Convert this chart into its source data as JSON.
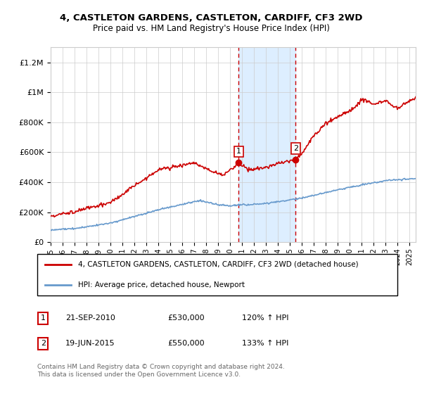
{
  "title1": "4, CASTLETON GARDENS, CASTLETON, CARDIFF, CF3 2WD",
  "title2": "Price paid vs. HM Land Registry's House Price Index (HPI)",
  "ylabel_ticks": [
    "£0",
    "£200K",
    "£400K",
    "£600K",
    "£800K",
    "£1M",
    "£1.2M"
  ],
  "ytick_values": [
    0,
    200000,
    400000,
    600000,
    800000,
    1000000,
    1200000
  ],
  "ylim": [
    0,
    1300000
  ],
  "xlim_start": 1995.0,
  "xlim_end": 2025.5,
  "legend_label_red": "4, CASTLETON GARDENS, CASTLETON, CARDIFF, CF3 2WD (detached house)",
  "legend_label_blue": "HPI: Average price, detached house, Newport",
  "sale1_year": 2010.72,
  "sale1_price": 530000,
  "sale1_label": "1",
  "sale2_year": 2015.47,
  "sale2_price": 550000,
  "sale2_label": "2",
  "copyright_text": "Contains HM Land Registry data © Crown copyright and database right 2024.\nThis data is licensed under the Open Government Licence v3.0.",
  "red_color": "#cc0000",
  "blue_color": "#6699cc",
  "shade_color": "#ddeeff",
  "grid_color": "#cccccc",
  "background_color": "#ffffff",
  "ann1_date": "21-SEP-2010",
  "ann1_price": "£530,000",
  "ann1_hpi": "120% ↑ HPI",
  "ann2_date": "19-JUN-2015",
  "ann2_price": "£550,000",
  "ann2_hpi": "133% ↑ HPI"
}
